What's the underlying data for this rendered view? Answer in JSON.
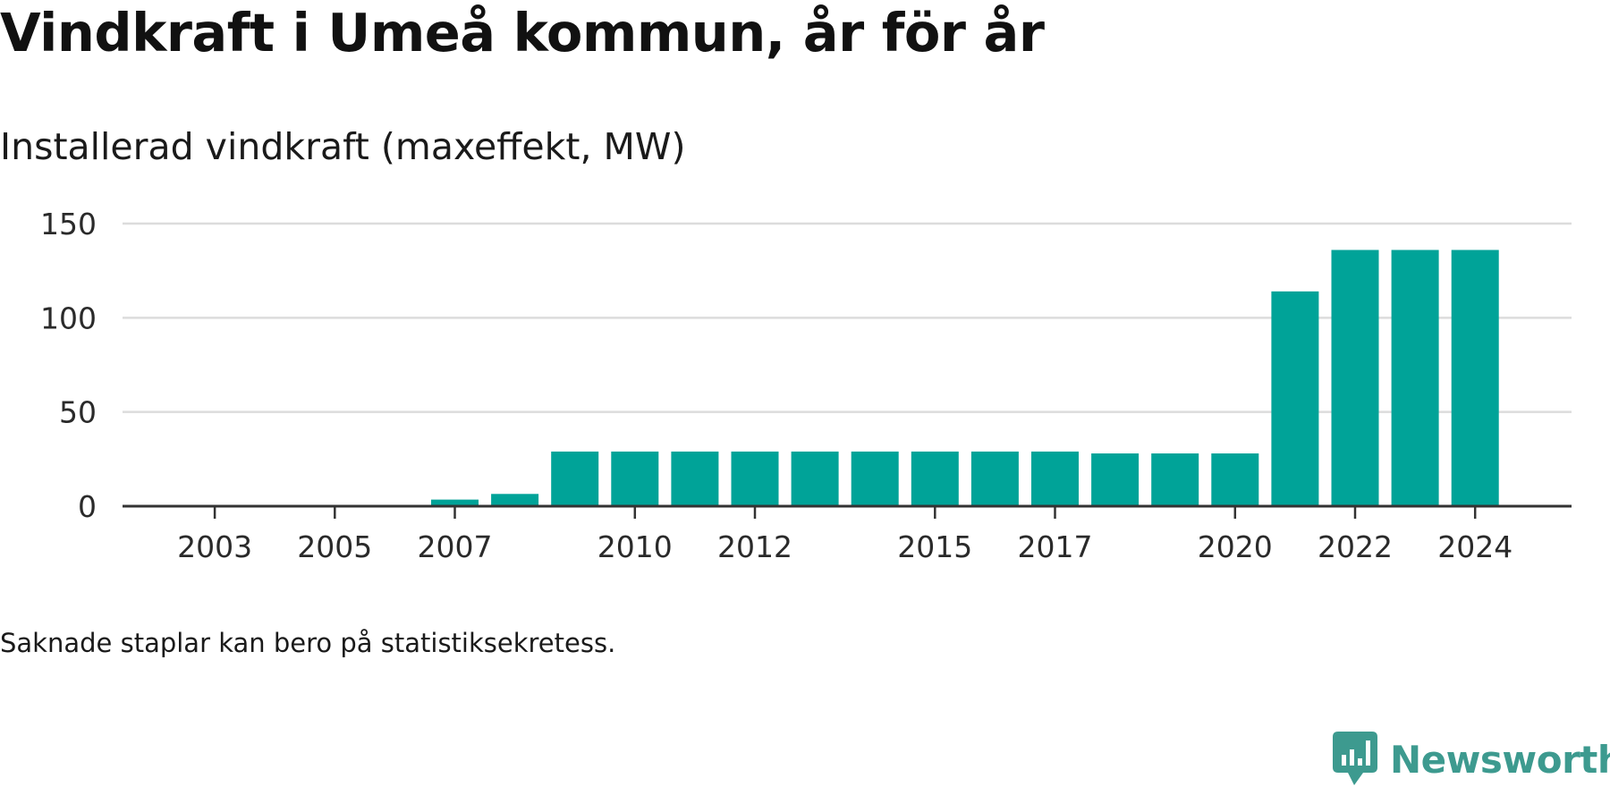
{
  "title": "Vindkraft i Umeå kommun, år för år",
  "subtitle": "Installerad vindkraft (maxeffekt, MW)",
  "note": "Saknade staplar kan bero på statistiksekretess.",
  "brand": {
    "name": "Newsworthy",
    "color": "#3d9a8f"
  },
  "chart_data": {
    "type": "bar",
    "title": "Vindkraft i Umeå kommun, år för år",
    "subtitle": "Installerad vindkraft (maxeffekt, MW)",
    "xlabel": "",
    "ylabel": "",
    "ylim": [
      0,
      150
    ],
    "yticks": [
      0,
      50,
      100,
      150
    ],
    "xticks": [
      2003,
      2005,
      2007,
      2010,
      2012,
      2015,
      2017,
      2020,
      2022,
      2024
    ],
    "grid": true,
    "legend": "none",
    "bar_color": "#00a398",
    "categories": [
      2002,
      2003,
      2004,
      2005,
      2006,
      2007,
      2008,
      2009,
      2010,
      2011,
      2012,
      2013,
      2014,
      2015,
      2016,
      2017,
      2018,
      2019,
      2020,
      2021,
      2022,
      2023,
      2024
    ],
    "values": [
      null,
      null,
      null,
      null,
      null,
      3.5,
      6.5,
      29,
      29,
      29,
      29,
      29,
      29,
      29,
      29,
      29,
      28,
      28,
      28,
      114,
      136,
      136,
      136
    ]
  }
}
